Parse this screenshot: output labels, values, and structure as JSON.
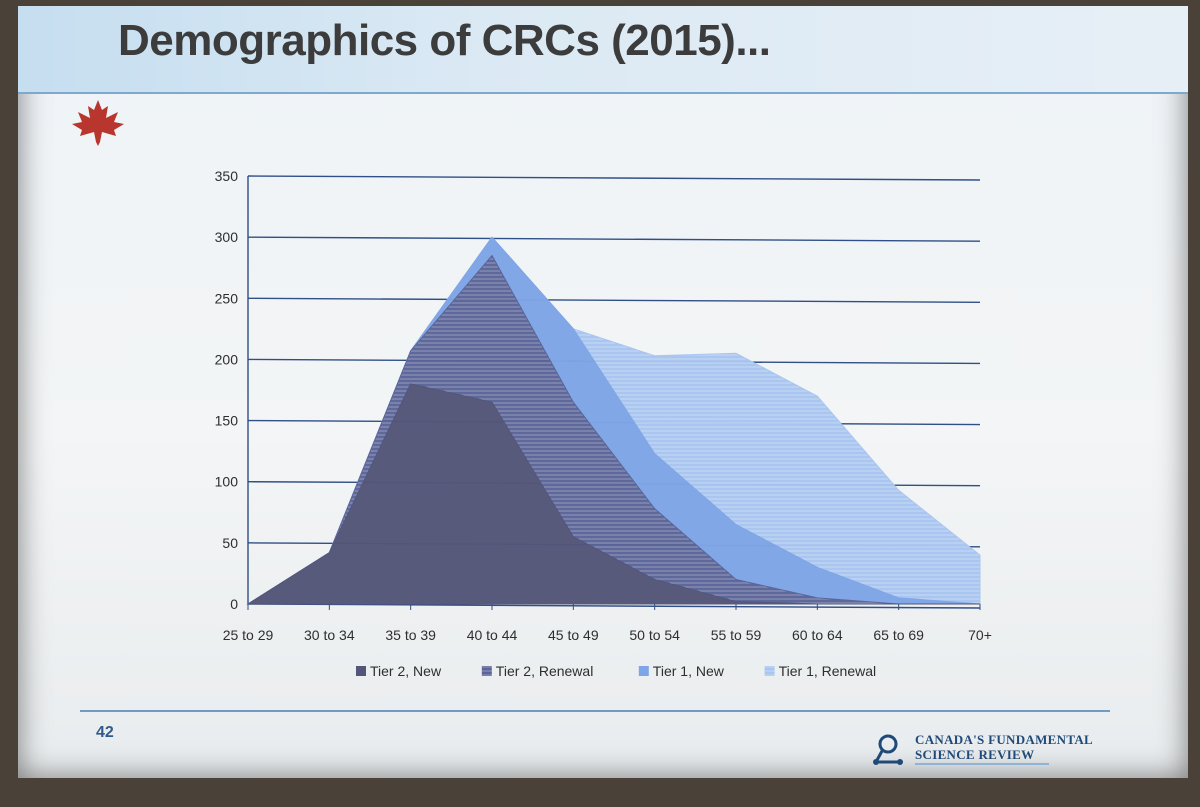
{
  "slide": {
    "title": "Demographics of CRCs (2015)...",
    "page_number": "42",
    "logo_text_line1": "CANADA'S FUNDAMENTAL",
    "logo_text_line2": "SCIENCE REVIEW",
    "icons": [
      "maple-leaf-icon",
      "science-review-logo-icon"
    ]
  },
  "chart_data": {
    "type": "area",
    "stacked": true,
    "title": "",
    "xlabel": "",
    "ylabel": "",
    "categories": [
      "25 to 29",
      "30 to 34",
      "35 to 39",
      "40 to 44",
      "45 to 49",
      "50 to 54",
      "55 to 59",
      "60 to 64",
      "65 to 69",
      "70+"
    ],
    "ylim": [
      0,
      350
    ],
    "yticks": [
      0,
      50,
      100,
      150,
      200,
      250,
      300,
      350
    ],
    "grid": true,
    "legend_position": "bottom",
    "series": [
      {
        "name": "Tier 2, New",
        "values": [
          0,
          42,
          180,
          165,
          55,
          20,
          2,
          0,
          0,
          0
        ],
        "color": "#545679"
      },
      {
        "name": "Tier 2, Renewal",
        "values": [
          0,
          0,
          27,
          120,
          110,
          58,
          18,
          5,
          0,
          0
        ],
        "color": "#5a6498"
      },
      {
        "name": "Tier 1, New",
        "values": [
          0,
          0,
          0,
          15,
          60,
          45,
          45,
          25,
          5,
          0
        ],
        "color": "#7ea5e6"
      },
      {
        "name": "Tier 1, Renewal",
        "values": [
          0,
          0,
          0,
          0,
          0,
          80,
          140,
          140,
          88,
          40
        ],
        "color": "#a8c5f0"
      }
    ]
  }
}
